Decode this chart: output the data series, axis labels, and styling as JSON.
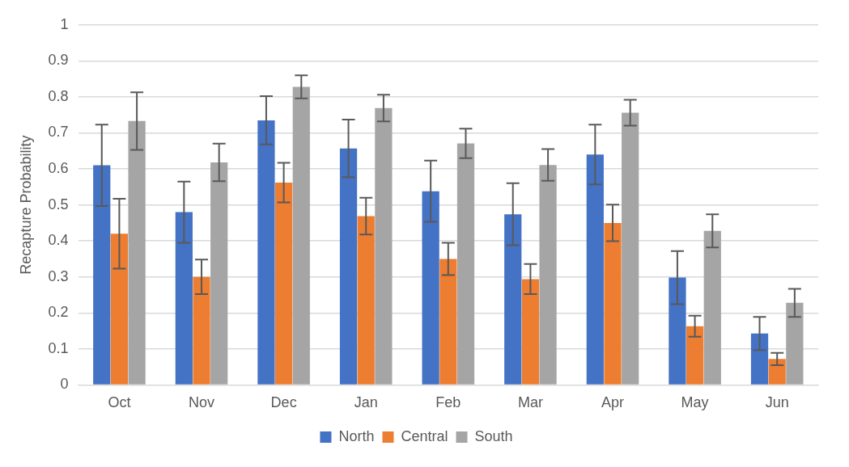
{
  "chart_data": {
    "type": "bar",
    "ylabel": "Recapture Probability",
    "categories": [
      "Oct",
      "Nov",
      "Dec",
      "Jan",
      "Feb",
      "Mar",
      "Apr",
      "May",
      "Jun"
    ],
    "series": [
      {
        "name": "North",
        "color": "#4472c4",
        "values": [
          0.61,
          0.48,
          0.735,
          0.657,
          0.538,
          0.474,
          0.64,
          0.298,
          0.143
        ],
        "errors": [
          0.113,
          0.085,
          0.067,
          0.08,
          0.085,
          0.086,
          0.083,
          0.074,
          0.046
        ]
      },
      {
        "name": "Central",
        "color": "#ed7d31",
        "values": [
          0.42,
          0.3,
          0.562,
          0.469,
          0.35,
          0.294,
          0.45,
          0.163,
          0.072
        ],
        "errors": [
          0.097,
          0.048,
          0.055,
          0.051,
          0.045,
          0.042,
          0.051,
          0.029,
          0.017
        ]
      },
      {
        "name": "South",
        "color": "#a5a5a5",
        "values": [
          0.733,
          0.618,
          0.828,
          0.769,
          0.671,
          0.611,
          0.756,
          0.428,
          0.228
        ],
        "errors": [
          0.08,
          0.052,
          0.032,
          0.037,
          0.041,
          0.044,
          0.036,
          0.046,
          0.039
        ]
      }
    ],
    "ylim": [
      0,
      1
    ],
    "yticks": [
      0,
      0.1,
      0.2,
      0.3,
      0.4,
      0.5,
      0.6,
      0.7,
      0.8,
      0.9,
      1
    ],
    "grid": "y",
    "legend": "bottom"
  }
}
